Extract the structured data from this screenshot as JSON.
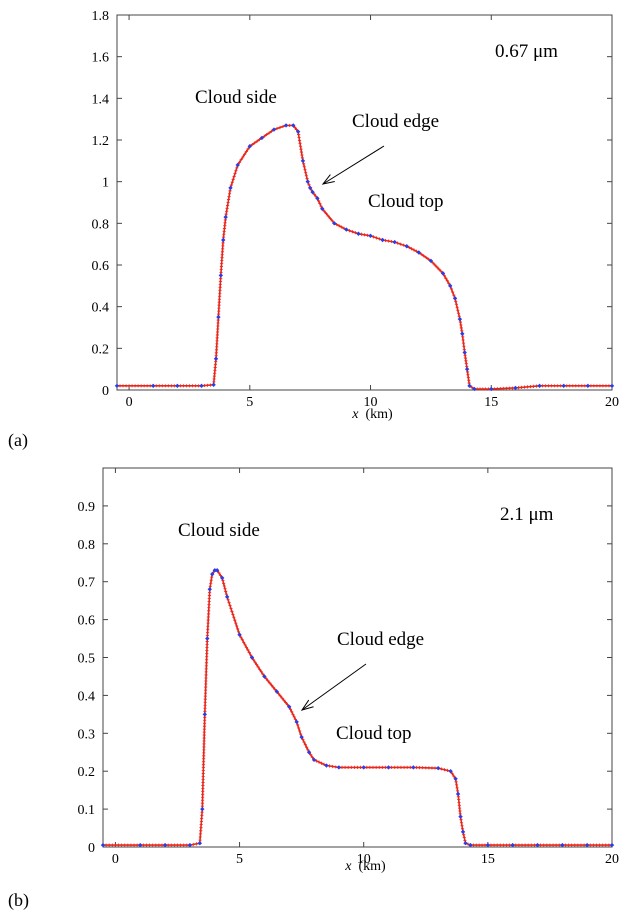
{
  "chart_data": [
    {
      "type": "line",
      "panel_label": "(a)",
      "wavelength_label": "0.67 μm",
      "xlabel_var": "x",
      "xlabel_unit": "(km)",
      "xlim": [
        -0.5,
        20
      ],
      "ylim": [
        0,
        1.8
      ],
      "xticks": [
        "0",
        "5",
        "10",
        "15",
        "20"
      ],
      "yticks": [
        "0",
        "0.2",
        "0.4",
        "0.6",
        "0.8",
        "1",
        "1.2",
        "1.4",
        "1.6",
        "1.8"
      ],
      "grid": false,
      "annotations": {
        "side": "Cloud side",
        "edge": "Cloud edge",
        "top": "Cloud top"
      },
      "colors": {
        "line": "#e8261c",
        "marker": "#2b3ee6",
        "frame": "#444444"
      },
      "series": [
        {
          "x": [
            -0.5,
            1,
            2,
            3,
            3.5,
            3.6,
            3.7,
            3.8,
            3.9,
            4.0,
            4.2,
            4.5,
            5.0,
            5.5,
            6.0,
            6.5,
            6.8,
            7.0,
            7.2,
            7.4,
            7.5,
            7.6,
            7.8,
            8.0,
            8.5,
            9.0,
            9.5,
            10.0,
            10.5,
            11.0,
            11.5,
            12.0,
            12.5,
            13.0,
            13.3,
            13.5,
            13.7,
            13.8,
            13.9,
            14.0,
            14.1,
            14.3,
            15,
            16,
            17,
            18,
            19,
            20
          ],
          "y": [
            0.02,
            0.02,
            0.02,
            0.02,
            0.025,
            0.15,
            0.35,
            0.55,
            0.72,
            0.83,
            0.97,
            1.08,
            1.17,
            1.21,
            1.25,
            1.27,
            1.27,
            1.24,
            1.1,
            1.0,
            0.97,
            0.95,
            0.92,
            0.87,
            0.8,
            0.77,
            0.75,
            0.74,
            0.72,
            0.71,
            0.69,
            0.66,
            0.62,
            0.56,
            0.5,
            0.44,
            0.34,
            0.27,
            0.18,
            0.1,
            0.02,
            0.005,
            0.005,
            0.01,
            0.02,
            0.02,
            0.02,
            0.02
          ]
        }
      ]
    },
    {
      "type": "line",
      "panel_label": "(b)",
      "wavelength_label": "2.1 μm",
      "xlabel_var": "x",
      "xlabel_unit": "(km)",
      "xlim": [
        -0.5,
        20
      ],
      "ylim": [
        0,
        1.0
      ],
      "xticks": [
        "0",
        "5",
        "10",
        "15",
        "20"
      ],
      "yticks": [
        "0",
        "0.1",
        "0.2",
        "0.3",
        "0.4",
        "0.5",
        "0.6",
        "0.7",
        "0.8",
        "0.9"
      ],
      "grid": false,
      "annotations": {
        "side": "Cloud side",
        "edge": "Cloud edge",
        "top": "Cloud top"
      },
      "colors": {
        "line": "#e8261c",
        "marker": "#2b3ee6",
        "frame": "#444444"
      },
      "series": [
        {
          "x": [
            -0.5,
            1,
            2,
            3,
            3.4,
            3.5,
            3.6,
            3.7,
            3.8,
            3.9,
            4.0,
            4.1,
            4.3,
            4.5,
            5.0,
            5.5,
            6.0,
            6.5,
            7.0,
            7.3,
            7.5,
            7.8,
            8.0,
            8.5,
            9.0,
            10,
            11,
            12,
            13,
            13.5,
            13.7,
            13.8,
            13.9,
            14.0,
            14.1,
            14.3,
            15,
            16,
            17,
            18,
            19,
            20
          ],
          "y": [
            0.005,
            0.005,
            0.005,
            0.005,
            0.01,
            0.1,
            0.35,
            0.55,
            0.68,
            0.72,
            0.73,
            0.73,
            0.71,
            0.66,
            0.56,
            0.5,
            0.45,
            0.41,
            0.37,
            0.33,
            0.29,
            0.25,
            0.23,
            0.215,
            0.21,
            0.21,
            0.21,
            0.21,
            0.208,
            0.2,
            0.18,
            0.14,
            0.08,
            0.04,
            0.01,
            0.005,
            0.005,
            0.005,
            0.005,
            0.005,
            0.005,
            0.005
          ]
        }
      ]
    }
  ]
}
